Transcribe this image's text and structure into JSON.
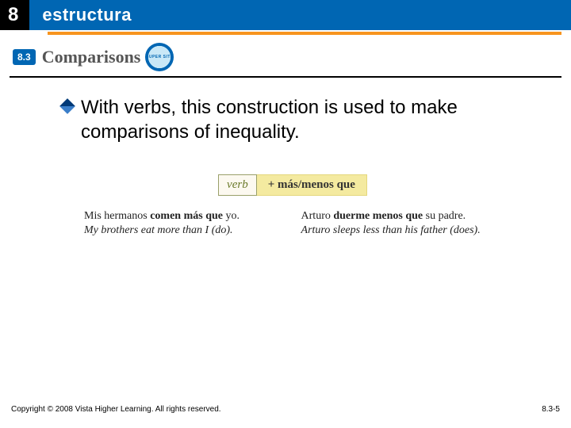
{
  "header": {
    "chapter_num": "8",
    "title": "estructura"
  },
  "subheader": {
    "badge": "8.3",
    "title": "Comparisons",
    "supersite_label": "SUPER SITE"
  },
  "bullet": {
    "text": "With verbs, this construction is used to make comparisons of inequality."
  },
  "formula": {
    "verb": "verb",
    "rest": "+  más/menos que"
  },
  "examples": {
    "left": {
      "es_pre": "Mis hermanos ",
      "es_bold": "comen más que",
      "es_post": " yo.",
      "en": "My brothers eat more than I (do)."
    },
    "right": {
      "es_pre": "Arturo ",
      "es_bold": "duerme menos que",
      "es_post": " su padre.",
      "en": "Arturo sleeps less than his father (does)."
    }
  },
  "footer": {
    "copyright": "Copyright © 2008 Vista Higher Learning. All rights reserved.",
    "page": "8.3-5"
  },
  "colors": {
    "blue": "#0066b3",
    "orange": "#f7941e",
    "formula_bg": "#f4eaa0"
  }
}
